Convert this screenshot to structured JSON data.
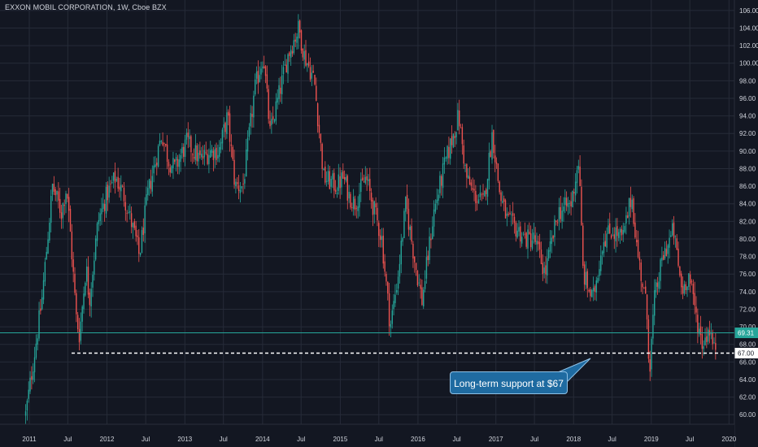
{
  "title": "EXXON MOBIL CORPORATION, 1W, Cboe BZX",
  "annotation": "Long-term support at $67",
  "colors": {
    "background": "#131722",
    "up": "#26a69a",
    "down": "#ef5350",
    "support_line": "#ffffff",
    "current_price": "#26a69a",
    "callout_bg": "#1f6ba1",
    "grid": "#262b38"
  },
  "chart_data": {
    "type": "candlestick",
    "interval": "1W",
    "ylim": [
      59,
      107
    ],
    "y_ticks": [
      "60.00",
      "62.00",
      "64.00",
      "66.00",
      "68.00",
      "70.00",
      "72.00",
      "74.00",
      "76.00",
      "78.00",
      "80.00",
      "82.00",
      "84.00",
      "86.00",
      "88.00",
      "90.00",
      "92.00",
      "94.00",
      "96.00",
      "98.00",
      "100.00",
      "102.00",
      "104.00",
      "106.00"
    ],
    "x_ticks": [
      "2011",
      "Jul",
      "2012",
      "Jul",
      "2013",
      "Jul",
      "2014",
      "Jul",
      "2015",
      "Jul",
      "2016",
      "Jul",
      "2017",
      "Jul",
      "2018",
      "Jul",
      "2019",
      "Jul",
      "2020"
    ],
    "current_price": "69.31",
    "support_level": 67,
    "support_label": "67.00",
    "close_path": [
      [
        "2010-12-15",
        60
      ],
      [
        "2011-01-20",
        66
      ],
      [
        "2011-03-01",
        73
      ],
      [
        "2011-04-20",
        86
      ],
      [
        "2011-06-01",
        83
      ],
      [
        "2011-06-25",
        86
      ],
      [
        "2011-07-15",
        80
      ],
      [
        "2011-08-10",
        71
      ],
      [
        "2011-08-25",
        69
      ],
      [
        "2011-09-25",
        77
      ],
      [
        "2011-10-10",
        73
      ],
      [
        "2011-11-20",
        82
      ],
      [
        "2011-12-31",
        85
      ],
      [
        "2012-02-10",
        87
      ],
      [
        "2012-03-20",
        85
      ],
      [
        "2012-05-15",
        80
      ],
      [
        "2012-06-01",
        78
      ],
      [
        "2012-07-10",
        85
      ],
      [
        "2012-09-15",
        92
      ],
      [
        "2012-10-15",
        89
      ],
      [
        "2012-11-15",
        88
      ],
      [
        "2013-01-10",
        91
      ],
      [
        "2013-03-15",
        89
      ],
      [
        "2013-05-01",
        90
      ],
      [
        "2013-06-10",
        90
      ],
      [
        "2013-07-20",
        94
      ],
      [
        "2013-08-25",
        86
      ],
      [
        "2013-10-01",
        86
      ],
      [
        "2013-11-25",
        97
      ],
      [
        "2014-01-05",
        101
      ],
      [
        "2014-02-05",
        92
      ],
      [
        "2014-03-15",
        96
      ],
      [
        "2014-05-01",
        101
      ],
      [
        "2014-06-20",
        104
      ],
      [
        "2014-07-15",
        101
      ],
      [
        "2014-09-01",
        98
      ],
      [
        "2014-10-15",
        87
      ],
      [
        "2014-12-15",
        86
      ],
      [
        "2015-01-15",
        87
      ],
      [
        "2015-02-10",
        85
      ],
      [
        "2015-03-10",
        84
      ],
      [
        "2015-05-01",
        87
      ],
      [
        "2015-06-01",
        84
      ],
      [
        "2015-07-15",
        80
      ],
      [
        "2015-08-24",
        70
      ],
      [
        "2015-09-30",
        76
      ],
      [
        "2015-11-05",
        84
      ],
      [
        "2015-12-20",
        77
      ],
      [
        "2016-01-20",
        73
      ],
      [
        "2016-03-15",
        83
      ],
      [
        "2016-05-01",
        88
      ],
      [
        "2016-07-10",
        94
      ],
      [
        "2016-08-15",
        87
      ],
      [
        "2016-09-20",
        85
      ],
      [
        "2016-11-05",
        84
      ],
      [
        "2016-12-15",
        92
      ],
      [
        "2017-01-20",
        85
      ],
      [
        "2017-02-25",
        82
      ],
      [
        "2017-04-15",
        81
      ],
      [
        "2017-05-20",
        80
      ],
      [
        "2017-07-01",
        80
      ],
      [
        "2017-08-20",
        76
      ],
      [
        "2017-10-20",
        83
      ],
      [
        "2017-12-20",
        84
      ],
      [
        "2018-01-25",
        89
      ],
      [
        "2018-02-15",
        76
      ],
      [
        "2018-04-01",
        73
      ],
      [
        "2018-05-20",
        80
      ],
      [
        "2018-07-01",
        81
      ],
      [
        "2018-08-20",
        80
      ],
      [
        "2018-10-01",
        85
      ],
      [
        "2018-10-25",
        79
      ],
      [
        "2018-12-10",
        72
      ],
      [
        "2018-12-24",
        65
      ],
      [
        "2019-01-15",
        73
      ],
      [
        "2019-02-25",
        78
      ],
      [
        "2019-04-15",
        81
      ],
      [
        "2019-05-25",
        74
      ],
      [
        "2019-06-25",
        76
      ],
      [
        "2019-08-10",
        70
      ],
      [
        "2019-08-30",
        68
      ],
      [
        "2019-10-01",
        70
      ],
      [
        "2019-10-25",
        67
      ],
      [
        "2019-11-05",
        69
      ]
    ]
  }
}
